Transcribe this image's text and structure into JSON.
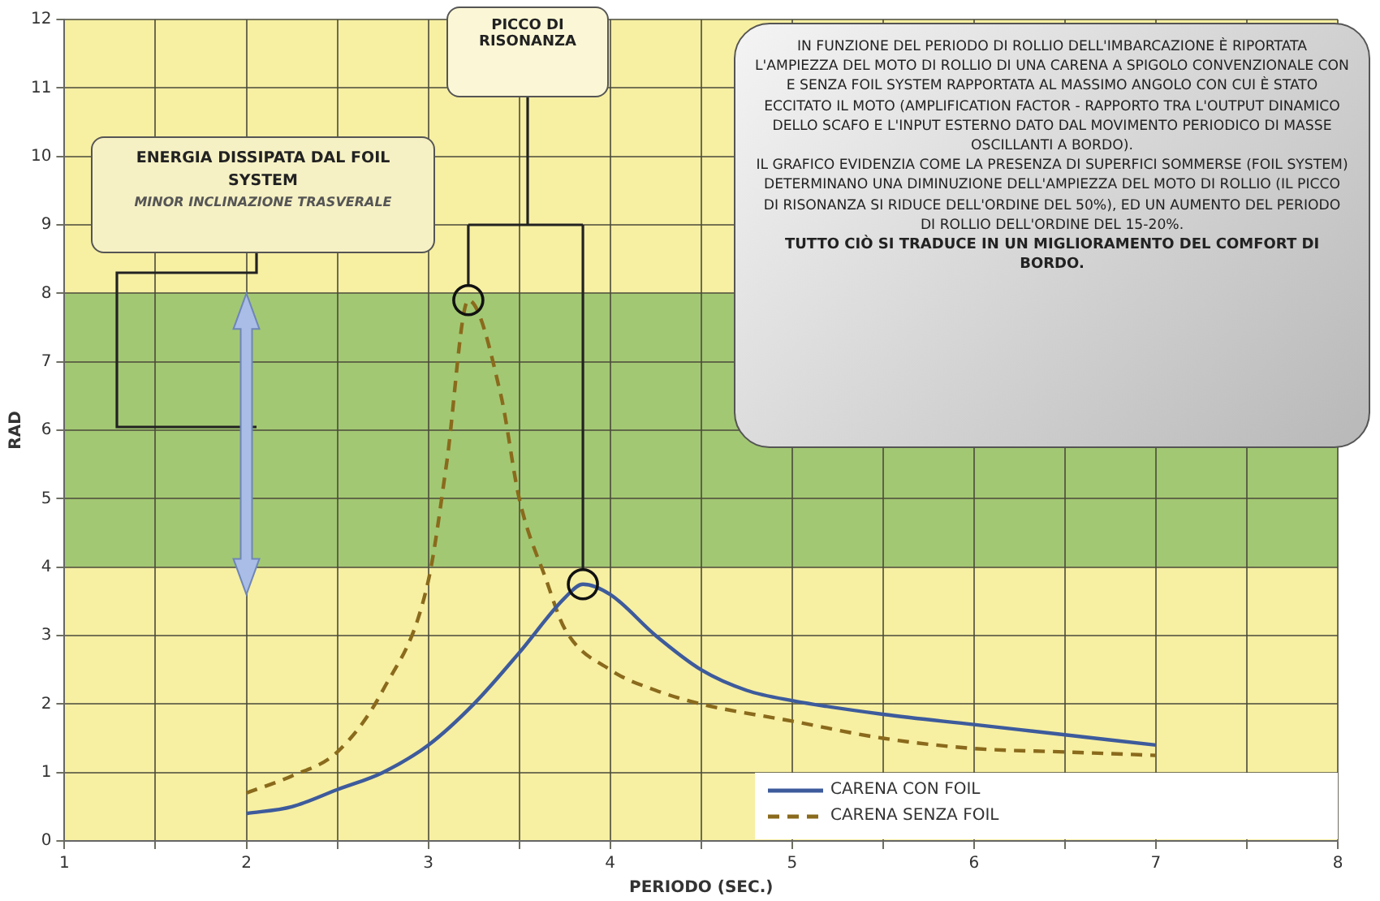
{
  "chart_data": {
    "type": "line",
    "xlabel": "PERIODO (SEC.)",
    "ylabel": "RAD",
    "xlim": [
      1,
      8
    ],
    "ylim": [
      0,
      12
    ],
    "xticks": [
      1,
      {
        "value": 1.5,
        "label": null
      },
      2,
      {
        "value": 2.5,
        "label": null
      },
      3,
      {
        "value": 3.5,
        "label": null
      },
      4,
      {
        "value": 4.5,
        "label": null
      },
      5,
      {
        "value": 5.5,
        "label": null
      },
      6,
      {
        "value": 6.5,
        "label": null
      },
      7,
      {
        "value": 7.5,
        "label": null
      },
      8
    ],
    "yticks": [
      0,
      1,
      2,
      3,
      4,
      5,
      6,
      7,
      8,
      9,
      10,
      11,
      12
    ],
    "grid": true,
    "legend": "bottom right",
    "marker": "none",
    "bands": [
      {
        "axis": "y",
        "from": 4,
        "to": 8,
        "color": "#a3c873"
      }
    ],
    "series": [
      {
        "name": "CARENA CON FOIL",
        "color": "#3d5b9c",
        "line_style": "solid",
        "x": [
          2,
          2.25,
          2.5,
          2.75,
          3,
          3.25,
          3.5,
          3.75,
          3.85,
          4,
          4.25,
          4.5,
          4.75,
          5,
          5.5,
          6,
          6.5,
          7
        ],
        "values": [
          0.4,
          0.5,
          0.75,
          1.0,
          1.4,
          2.0,
          2.75,
          3.55,
          3.75,
          3.6,
          3.0,
          2.5,
          2.2,
          2.05,
          1.85,
          1.7,
          1.55,
          1.4
        ]
      },
      {
        "name": "CARENA SENZA FOIL",
        "color": "#8a6a1c",
        "line_style": "dashed",
        "x": [
          2,
          2.25,
          2.5,
          2.75,
          3,
          3.1,
          3.22,
          3.4,
          3.5,
          3.65,
          3.75,
          4,
          4.25,
          4.5,
          5,
          5.5,
          6,
          6.5,
          7
        ],
        "values": [
          0.7,
          0.95,
          1.3,
          2.2,
          3.8,
          5.5,
          7.9,
          6.5,
          5.0,
          3.8,
          3.1,
          2.5,
          2.2,
          2.0,
          1.75,
          1.5,
          1.35,
          1.3,
          1.25
        ]
      }
    ],
    "annotations": [
      "PICCO DI RISONANZA",
      "ENERGIA DISSIPATA DAL FOIL SYSTEM",
      "MINOR INCLINAZIONE TRASVERALE",
      "IN FUNZIONE DEL PERIODO DI ROLLIO DELL'IMBARCAZIONE È RIPORTATA L'AMPIEZZA DEL MOTO DI ROLLIO DI UNA CARENA A SPIGOLO CONVENZIONALE CON E SENZA FOIL SYSTEM RAPPORTATA AL MASSIMO ANGOLO CON CUI È STATO ECCITATO IL MOTO (AMPLIFICATION FACTOR - RAPPORTO TRA L'OUTPUT DINAMICO DELLO SCAFO E L'INPUT ESTERNO DATO DAL MOVIMENTO PERIODICO DI MASSE OSCILLANTI A BORDO).",
      "IL GRAFICO EVIDENZIA COME LA PRESENZA DI SUPERFICI SOMMERSE (FOIL SYSTEM) DETERMINANO UNA DIMINUZIONE DELL'AMPIEZZA DEL MOTO DI ROLLIO (IL PICCO DI RISONANZA SI RIDUCE DELL'ORDINE DEL 50%), ED UN AUMENTO DEL PERIODO DI ROLLIO DELL'ORDINE DEL 15-20%.",
      "TUTTO CIÒ SI TRADUCE IN UN MIGLIORAMENTO DEL COMFORT DI BORDO."
    ]
  }
}
